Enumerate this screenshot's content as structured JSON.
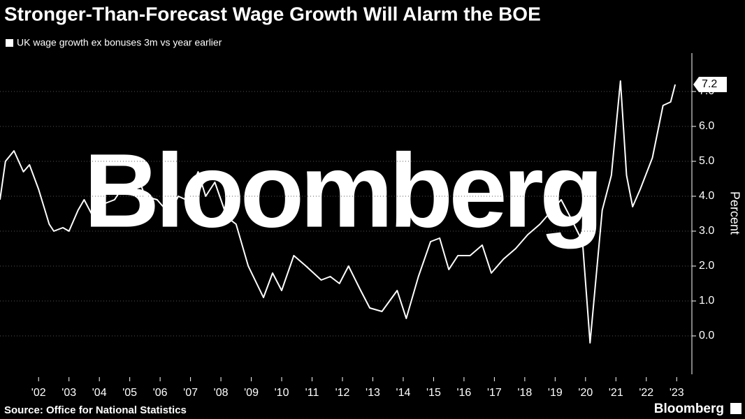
{
  "chart_data": {
    "type": "line",
    "title": "Stronger-Than-Forecast Wage Growth Will Alarm the BOE",
    "source": "Source: Office for National Statistics",
    "watermark": "Bloomberg",
    "logo": "Bloomberg",
    "y_label": "Percent",
    "series": [
      {
        "name": "UK wage growth ex bonuses 3m vs year earlier",
        "color": "#ffffff",
        "x": [
          2001.23,
          2001.41,
          2001.69,
          2002.0,
          2002.2,
          2002.5,
          2002.85,
          2003.0,
          2003.3,
          2003.5,
          2003.8,
          2004.0,
          2004.3,
          2004.7,
          2005.0,
          2005.3,
          2005.5,
          2005.8,
          2006.0,
          2006.4,
          2006.8,
          2007.1,
          2007.35,
          2007.75,
          2008.0,
          2008.3,
          2008.7,
          2009.0,
          2009.4,
          2009.9,
          2010.2,
          2010.5,
          2010.9,
          2011.3,
          2011.8,
          2012.1,
          2012.4,
          2012.7,
          2013.1,
          2013.4,
          2013.8,
          2014.3,
          2014.6,
          2015.0,
          2015.4,
          2015.7,
          2016.0,
          2016.3,
          2016.7,
          2017.1,
          2017.4,
          2017.8,
          2018.2,
          2018.6,
          2019.0,
          2019.3,
          2019.7,
          2020.0,
          2020.4,
          2020.65,
          2021.05,
          2021.35,
          2021.65,
          2021.85,
          2022.05,
          2022.3,
          2022.7,
          2023.05,
          2023.3,
          2023.45
        ],
        "values": [
          3.9,
          5.0,
          5.3,
          4.7,
          4.9,
          4.2,
          3.2,
          3.0,
          3.1,
          3.0,
          3.6,
          3.9,
          3.4,
          3.8,
          3.9,
          4.3,
          4.3,
          4.5,
          4.0,
          3.9,
          3.5,
          4.0,
          3.9,
          4.7,
          4.0,
          4.4,
          3.4,
          3.2,
          2.0,
          1.1,
          1.8,
          1.3,
          2.3,
          2.0,
          1.6,
          1.7,
          1.5,
          2.0,
          1.3,
          0.8,
          0.7,
          1.3,
          0.5,
          1.7,
          2.7,
          2.8,
          1.9,
          2.3,
          2.3,
          2.6,
          1.8,
          2.2,
          2.5,
          2.9,
          3.2,
          3.5,
          3.9,
          3.4,
          2.7,
          -0.2,
          3.6,
          4.6,
          7.3,
          4.6,
          3.7,
          4.2,
          5.1,
          6.6,
          6.7,
          7.2
        ],
        "last_label": "7.2"
      }
    ],
    "xlim": [
      2001.23,
      2024.0
    ],
    "ylim": [
      -1.1,
      8.1
    ],
    "xticks": [
      {
        "value": 2002.5,
        "label": "'02"
      },
      {
        "value": 2003.5,
        "label": "'03"
      },
      {
        "value": 2004.5,
        "label": "'04"
      },
      {
        "value": 2005.5,
        "label": "'05"
      },
      {
        "value": 2006.5,
        "label": "'06"
      },
      {
        "value": 2007.5,
        "label": "'07"
      },
      {
        "value": 2008.5,
        "label": "'08"
      },
      {
        "value": 2009.5,
        "label": "'09"
      },
      {
        "value": 2010.5,
        "label": "'10"
      },
      {
        "value": 2011.5,
        "label": "'11"
      },
      {
        "value": 2012.5,
        "label": "'12"
      },
      {
        "value": 2013.5,
        "label": "'13"
      },
      {
        "value": 2014.5,
        "label": "'14"
      },
      {
        "value": 2015.5,
        "label": "'15"
      },
      {
        "value": 2016.5,
        "label": "'16"
      },
      {
        "value": 2017.5,
        "label": "'17"
      },
      {
        "value": 2018.5,
        "label": "'18"
      },
      {
        "value": 2019.5,
        "label": "'19"
      },
      {
        "value": 2020.5,
        "label": "'20"
      },
      {
        "value": 2021.5,
        "label": "'21"
      },
      {
        "value": 2022.5,
        "label": "'22"
      },
      {
        "value": 2023.5,
        "label": "'23"
      }
    ],
    "yticks": [
      {
        "value": 0,
        "label": "0.0"
      },
      {
        "value": 1,
        "label": "1.0"
      },
      {
        "value": 2,
        "label": "2.0"
      },
      {
        "value": 3,
        "label": "3.0"
      },
      {
        "value": 4,
        "label": "4.0"
      },
      {
        "value": 5,
        "label": "5.0"
      },
      {
        "value": 6,
        "label": "6.0"
      },
      {
        "value": 7,
        "label": "7.0"
      }
    ],
    "grid": true
  }
}
